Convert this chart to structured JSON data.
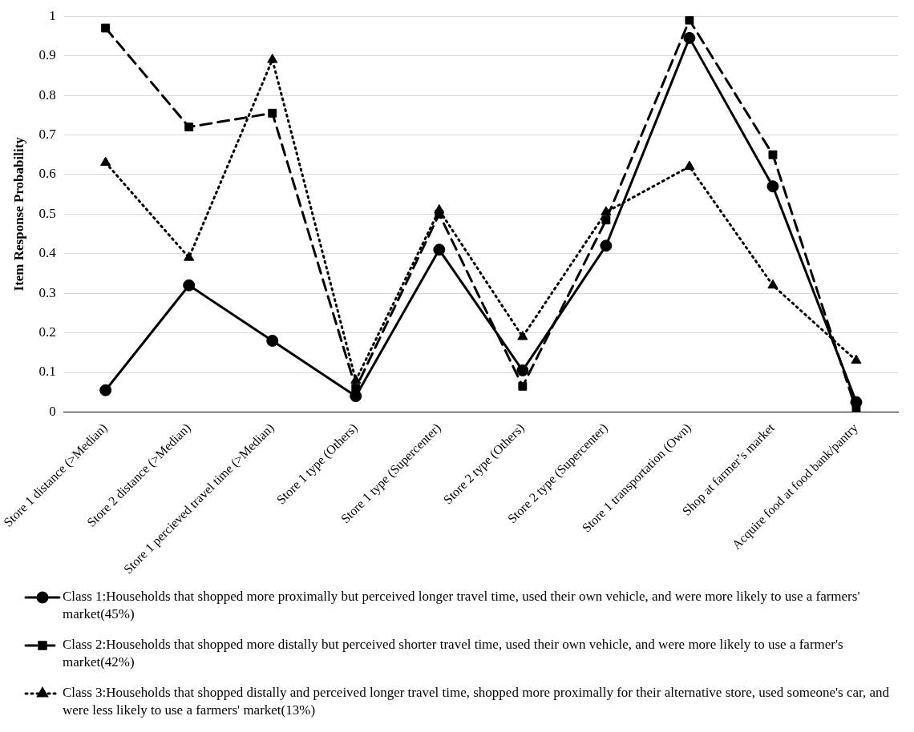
{
  "chart_data": {
    "type": "line",
    "ylabel": "Item Response Probability",
    "categories": [
      "Store 1 distance (>Median)",
      "Store 2 distance (>Median)",
      "Store 1 percieved travel time (>Median)",
      "Store 1 type (Others)",
      "Store 1 type (Supercenter)",
      "Store 2 type (Others)",
      "Store 2 type (Supercenter)",
      "Store 1 transportation (Own)",
      "Shop at farmer’s market",
      "Acquire food at food bank/pantry"
    ],
    "series": [
      {
        "name": "Class 1:Households that shopped more proximally but perceived longer travel time, used their own vehicle, and were more likely to use a farmers' market(45%)",
        "color": "#000000",
        "marker": "circle",
        "line_style": "solid",
        "values": [
          0.055,
          0.32,
          0.18,
          0.04,
          0.41,
          0.105,
          0.42,
          0.945,
          0.57,
          0.025
        ]
      },
      {
        "name": "Class 2:Households that shopped more distally but perceived shorter travel time, used their own vehicle, and were more likely to use a farmer's market(42%)",
        "color": "#000000",
        "marker": "square",
        "line_style": "dashed",
        "values": [
          0.97,
          0.72,
          0.755,
          0.06,
          0.5,
          0.065,
          0.485,
          0.99,
          0.65,
          0.005
        ]
      },
      {
        "name": "Class 3:Households that shopped distally and perceived longer travel time, shopped more proximally for their alternative store, used someone's car, and were less likely to use a farmers' market(13%)",
        "color": "#000000",
        "marker": "triangle",
        "line_style": "dotted",
        "values": [
          0.63,
          0.39,
          0.89,
          0.08,
          0.51,
          0.19,
          0.505,
          0.62,
          0.32,
          0.13
        ]
      }
    ],
    "ylim": [
      0,
      1
    ],
    "yticks": [
      0,
      0.1,
      0.2,
      0.3,
      0.4,
      0.5,
      0.6,
      0.7,
      0.8,
      0.9,
      1
    ],
    "grid": "y",
    "legend": "bottom"
  }
}
